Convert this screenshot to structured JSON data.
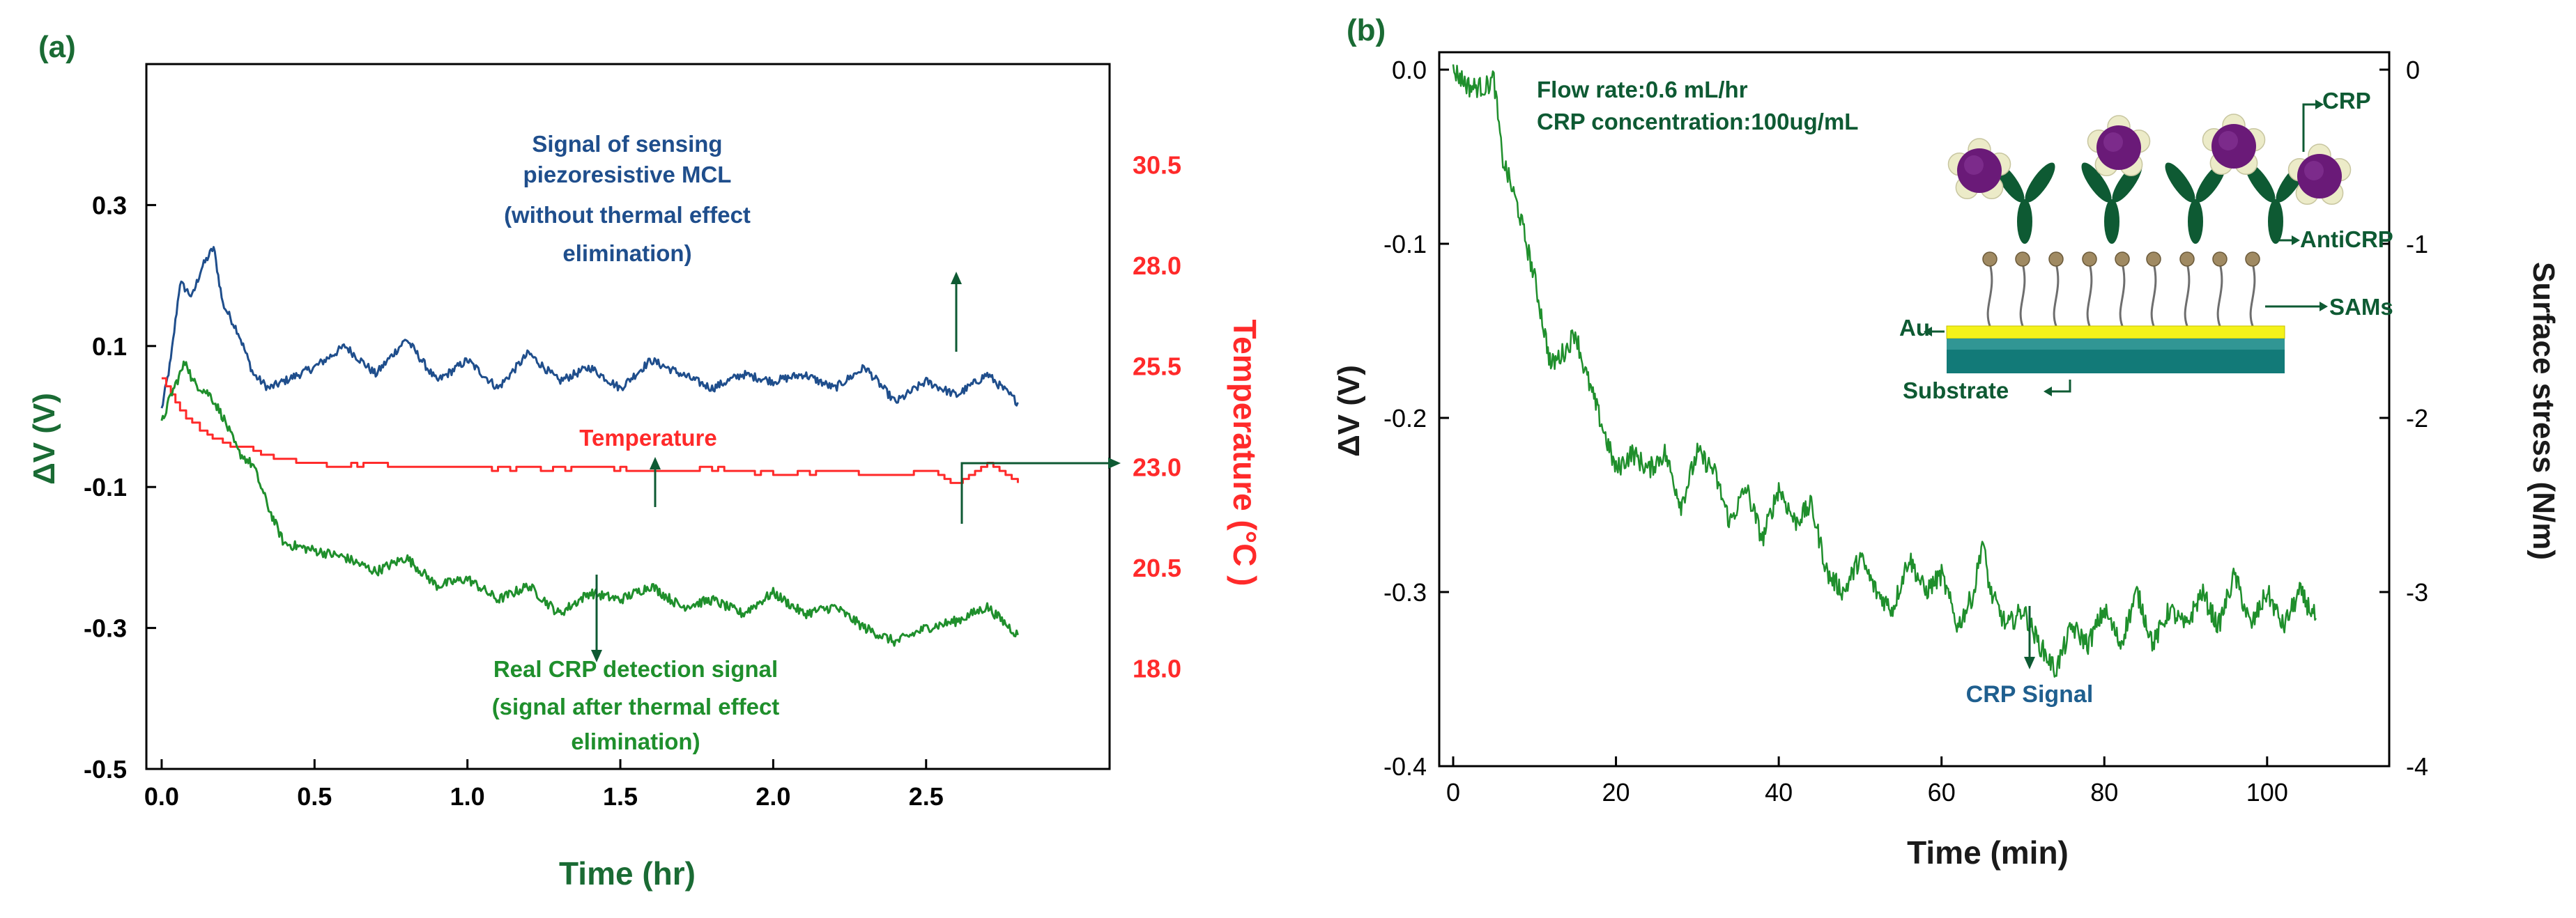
{
  "colors": {
    "signal_blue": "#1f4e8c",
    "temperature_red": "#ff2a2a",
    "crp_green": "#1f8f2c",
    "axis_green": "#1a6b34",
    "annotation_dark_green": "#0e5a33",
    "crp_signal_label_blue": "#1f5f8f",
    "protein_purple": "#6a1a78",
    "gold_layer": "#f4f21a",
    "substrate_teal": "#127a78"
  },
  "chart_data": [
    {
      "panel_label": "(a)",
      "type": "line",
      "xlabel": "Time (hr)",
      "ylabel": "ΔV (V)",
      "ylabel_right": "Temperature (°C )",
      "xlim": [
        -0.05,
        3.1
      ],
      "ylim": [
        -0.5,
        0.5
      ],
      "ylim_right": [
        15.5,
        33.0
      ],
      "x_ticks": [
        "0.0",
        "0.5",
        "1.0",
        "1.5",
        "2.0",
        "2.5"
      ],
      "x_tick_values": [
        0.0,
        0.5,
        1.0,
        1.5,
        2.0,
        2.5
      ],
      "y_ticks": [
        "0.3",
        "0.1",
        "-0.1",
        "-0.3",
        "-0.5"
      ],
      "y_tick_values": [
        0.3,
        0.1,
        -0.1,
        -0.3,
        -0.5
      ],
      "y_ticks_right": [
        "30.5",
        "28.0",
        "25.5",
        "23.0",
        "20.5",
        "18.0"
      ],
      "y_tick_values_right": [
        30.5,
        28.0,
        25.5,
        23.0,
        20.5,
        18.0
      ],
      "series": [
        {
          "name": "Signal of sensing piezoresistive MCL",
          "axis": "left",
          "x": [
            0.0,
            0.03,
            0.06,
            0.1,
            0.13,
            0.17,
            0.2,
            0.25,
            0.3,
            0.35,
            0.4,
            0.5,
            0.6,
            0.7,
            0.8,
            0.9,
            1.0,
            1.1,
            1.2,
            1.3,
            1.4,
            1.5,
            1.6,
            1.7,
            1.8,
            1.9,
            2.0,
            2.1,
            2.2,
            2.3,
            2.4,
            2.5,
            2.6,
            2.7,
            2.8
          ],
          "y": [
            0.01,
            0.08,
            0.19,
            0.17,
            0.21,
            0.24,
            0.16,
            0.12,
            0.06,
            0.04,
            0.05,
            0.07,
            0.1,
            0.06,
            0.11,
            0.05,
            0.08,
            0.04,
            0.09,
            0.05,
            0.07,
            0.04,
            0.08,
            0.06,
            0.04,
            0.06,
            0.05,
            0.06,
            0.04,
            0.07,
            0.02,
            0.05,
            0.03,
            0.06,
            0.02
          ]
        },
        {
          "name": "Temperature",
          "axis": "right",
          "x": [
            0.0,
            0.03,
            0.06,
            0.1,
            0.15,
            0.2,
            0.25,
            0.3,
            0.35,
            0.4,
            0.5,
            0.6,
            0.7,
            0.8,
            1.0,
            1.2,
            1.4,
            1.6,
            1.8,
            2.0,
            2.2,
            2.4,
            2.5,
            2.6,
            2.7,
            2.8
          ],
          "y": [
            25.2,
            24.8,
            24.4,
            24.1,
            23.8,
            23.6,
            23.5,
            23.4,
            23.3,
            23.2,
            23.1,
            23.0,
            23.1,
            23.0,
            23.0,
            22.95,
            23.0,
            22.9,
            22.95,
            22.85,
            22.9,
            22.8,
            22.9,
            22.6,
            23.1,
            22.6
          ]
        },
        {
          "name": "Real CRP detection signal",
          "axis": "left",
          "x": [
            0.0,
            0.03,
            0.06,
            0.08,
            0.1,
            0.13,
            0.16,
            0.2,
            0.25,
            0.3,
            0.35,
            0.4,
            0.5,
            0.6,
            0.7,
            0.8,
            0.9,
            1.0,
            1.1,
            1.2,
            1.3,
            1.4,
            1.5,
            1.6,
            1.7,
            1.8,
            1.9,
            2.0,
            2.1,
            2.2,
            2.3,
            2.4,
            2.5,
            2.6,
            2.7,
            2.8
          ],
          "y": [
            -0.01,
            0.03,
            0.06,
            0.08,
            0.05,
            0.04,
            0.03,
            0.0,
            -0.05,
            -0.07,
            -0.13,
            -0.18,
            -0.19,
            -0.2,
            -0.22,
            -0.2,
            -0.24,
            -0.23,
            -0.26,
            -0.24,
            -0.28,
            -0.25,
            -0.26,
            -0.24,
            -0.27,
            -0.26,
            -0.28,
            -0.25,
            -0.28,
            -0.27,
            -0.3,
            -0.32,
            -0.3,
            -0.29,
            -0.27,
            -0.31
          ]
        }
      ],
      "annotations": [
        {
          "text_lines": [
            "Signal of sensing",
            "piezoresistive MCL",
            "(without thermal effect",
            "elimination)"
          ],
          "target_series": "Signal of sensing piezoresistive MCL"
        },
        {
          "text_lines": [
            "Temperature"
          ],
          "target_series": "Temperature"
        },
        {
          "text_lines": [
            "Real CRP detection signal",
            "(signal after thermal effect",
            "elimination)"
          ],
          "target_series": "Real CRP detection signal"
        }
      ]
    },
    {
      "panel_label": "(b)",
      "type": "line",
      "xlabel": "Time (min)",
      "ylabel": "ΔV (V)",
      "ylabel_right": "Surface stress (N/m)",
      "xlim": [
        0,
        115
      ],
      "ylim": [
        -0.4,
        0.01
      ],
      "ylim_right": [
        -4,
        0.1
      ],
      "x_ticks": [
        "0",
        "20",
        "40",
        "60",
        "80",
        "100"
      ],
      "x_tick_values": [
        0,
        20,
        40,
        60,
        80,
        100
      ],
      "y_ticks": [
        "0.0",
        "-0.1",
        "-0.2",
        "-0.3",
        "-0.4"
      ],
      "y_tick_values": [
        0.0,
        -0.1,
        -0.2,
        -0.3,
        -0.4
      ],
      "y_ticks_right": [
        "0",
        "-1",
        "-2",
        "-3",
        "-4"
      ],
      "y_tick_values_right": [
        0,
        -1,
        -2,
        -3,
        -4
      ],
      "series": [
        {
          "name": "CRP Signal",
          "axis": "left",
          "x": [
            0,
            2,
            4,
            5,
            6,
            8,
            10,
            12,
            14,
            15,
            16,
            18,
            20,
            22,
            24,
            26,
            28,
            30,
            32,
            34,
            36,
            38,
            40,
            42,
            44,
            46,
            48,
            50,
            52,
            54,
            56,
            58,
            60,
            62,
            64,
            65,
            66,
            68,
            70,
            72,
            74,
            76,
            78,
            80,
            82,
            84,
            86,
            88,
            90,
            92,
            94,
            96,
            98,
            100,
            102,
            104,
            106
          ],
          "y": [
            0.0,
            -0.01,
            -0.01,
            -0.005,
            -0.05,
            -0.08,
            -0.12,
            -0.17,
            -0.16,
            -0.15,
            -0.17,
            -0.2,
            -0.23,
            -0.22,
            -0.23,
            -0.22,
            -0.25,
            -0.22,
            -0.23,
            -0.26,
            -0.24,
            -0.27,
            -0.24,
            -0.26,
            -0.25,
            -0.29,
            -0.3,
            -0.28,
            -0.3,
            -0.31,
            -0.28,
            -0.3,
            -0.29,
            -0.32,
            -0.3,
            -0.27,
            -0.3,
            -0.32,
            -0.31,
            -0.33,
            -0.345,
            -0.32,
            -0.33,
            -0.31,
            -0.33,
            -0.3,
            -0.33,
            -0.31,
            -0.32,
            -0.3,
            -0.32,
            -0.29,
            -0.32,
            -0.3,
            -0.32,
            -0.3,
            -0.315
          ]
        }
      ],
      "annotations": [
        {
          "text_lines": [
            "Flow rate:0.6 mL/hr",
            "CRP concentration:100ug/mL"
          ]
        },
        {
          "text_lines": [
            "CRP Signal"
          ],
          "target_series": "CRP Signal"
        }
      ],
      "schematic_labels": {
        "crp": "CRP",
        "anti_crp": "AntiCRP",
        "sams": "SAMs",
        "au": "Au",
        "substrate": "Substrate"
      }
    }
  ]
}
